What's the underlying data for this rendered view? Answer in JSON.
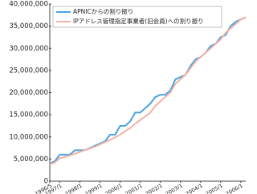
{
  "chart_data": {
    "type": "line",
    "categories": [
      "1996/5",
      null,
      "1997/1",
      null,
      null,
      null,
      "1998/1",
      null,
      null,
      null,
      "1999/1",
      null,
      null,
      null,
      "2000/1",
      null,
      null,
      null,
      "2001/1",
      null,
      null,
      null,
      "2002/1",
      null,
      null,
      null,
      "2003/1",
      null,
      null,
      null,
      "2004/1",
      null,
      null,
      null,
      "2005/1",
      null,
      null,
      null,
      "2006/1",
      null
    ],
    "series": [
      {
        "name": "APNICからの割り振り",
        "color": "#4aa3e0",
        "values": [
          4000000,
          4500000,
          6000000,
          6000000,
          6000000,
          7000000,
          7000000,
          7000000,
          7500000,
          8000000,
          8500000,
          9000000,
          10500000,
          10500000,
          12500000,
          12500000,
          13500000,
          15500000,
          15500000,
          16500000,
          17500000,
          19000000,
          19500000,
          19500000,
          20500000,
          23000000,
          23500000,
          24000000,
          26000000,
          27500000,
          28000000,
          29000000,
          30500000,
          31000000,
          32500000,
          33000000,
          35000000,
          36000000,
          36500000,
          37000000
        ]
      },
      {
        "name": "IPアドレス管理指定事業者(旧会員)への割り振り",
        "color": "#f4b3a3",
        "values": [
          3800000,
          4200000,
          5200000,
          5500000,
          5800000,
          6200000,
          6600000,
          7000000,
          7400000,
          7800000,
          8300000,
          8800000,
          9300000,
          9900000,
          10500000,
          11300000,
          12000000,
          13000000,
          13800000,
          14600000,
          15500000,
          17000000,
          18000000,
          19000000,
          20000000,
          22000000,
          23000000,
          24000000,
          25500000,
          27000000,
          28000000,
          29000000,
          30000000,
          31000000,
          32000000,
          33500000,
          34500000,
          35500000,
          36500000,
          37000000
        ]
      }
    ],
    "ylim": [
      0,
      40000000
    ],
    "yticks": [
      {
        "value": 0,
        "label": "0"
      },
      {
        "value": 5000000,
        "label": "5,000,000"
      },
      {
        "value": 10000000,
        "label": "10,000,000"
      },
      {
        "value": 15000000,
        "label": "15,000,000"
      },
      {
        "value": 20000000,
        "label": "20,000,000"
      },
      {
        "value": 25000000,
        "label": "25,000,000"
      },
      {
        "value": 30000000,
        "label": "30,000,000"
      },
      {
        "value": 35000000,
        "label": "35,000,000"
      },
      {
        "value": 40000000,
        "label": "40,000,000"
      }
    ],
    "grid": false,
    "legend": "upper left"
  }
}
